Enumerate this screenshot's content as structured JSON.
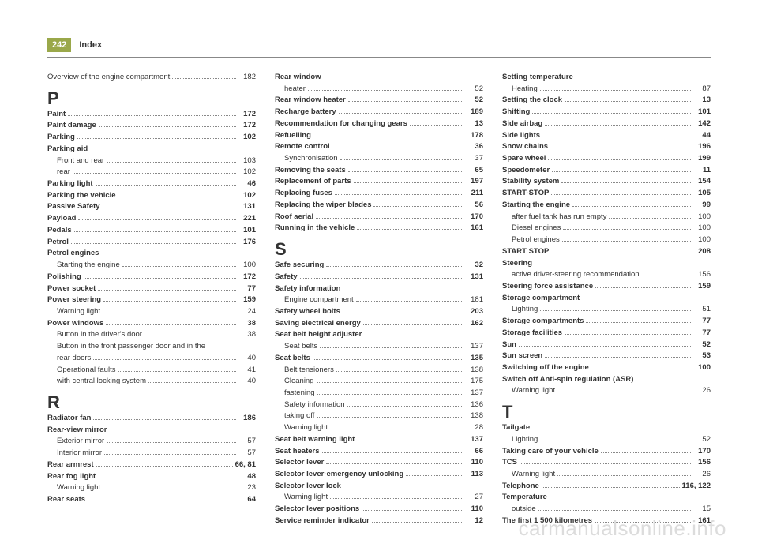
{
  "header": {
    "page_number": "242",
    "title": "Index"
  },
  "watermark": "carmanualsonline.info",
  "columns": [
    {
      "items": [
        {
          "type": "entry",
          "label": "Overview of the engine compartment",
          "page": "182",
          "bold": false,
          "sub": false
        },
        {
          "type": "letter",
          "text": "P"
        },
        {
          "type": "entry",
          "label": "Paint",
          "page": "172",
          "bold": true,
          "sub": false
        },
        {
          "type": "entry",
          "label": "Paint damage",
          "page": "172",
          "bold": true,
          "sub": false
        },
        {
          "type": "entry",
          "label": "Parking",
          "page": "102",
          "bold": true,
          "sub": false
        },
        {
          "type": "entry",
          "label": "Parking aid",
          "page": "",
          "bold": true,
          "sub": false,
          "nodots": true
        },
        {
          "type": "entry",
          "label": "Front and rear",
          "page": "103",
          "bold": false,
          "sub": true
        },
        {
          "type": "entry",
          "label": "rear",
          "page": "102",
          "bold": false,
          "sub": true
        },
        {
          "type": "entry",
          "label": "Parking light",
          "page": "46",
          "bold": true,
          "sub": false
        },
        {
          "type": "entry",
          "label": "Parking the vehicle",
          "page": "102",
          "bold": true,
          "sub": false
        },
        {
          "type": "entry",
          "label": "Passive Safety",
          "page": "131",
          "bold": true,
          "sub": false
        },
        {
          "type": "entry",
          "label": "Payload",
          "page": "221",
          "bold": true,
          "sub": false
        },
        {
          "type": "entry",
          "label": "Pedals",
          "page": "101",
          "bold": true,
          "sub": false
        },
        {
          "type": "entry",
          "label": "Petrol",
          "page": "176",
          "bold": true,
          "sub": false
        },
        {
          "type": "entry",
          "label": "Petrol engines",
          "page": "",
          "bold": true,
          "sub": false,
          "nodots": true
        },
        {
          "type": "entry",
          "label": "Starting the engine",
          "page": "100",
          "bold": false,
          "sub": true
        },
        {
          "type": "entry",
          "label": "Polishing",
          "page": "172",
          "bold": true,
          "sub": false
        },
        {
          "type": "entry",
          "label": "Power socket",
          "page": "77",
          "bold": true,
          "sub": false
        },
        {
          "type": "entry",
          "label": "Power steering",
          "page": "159",
          "bold": true,
          "sub": false
        },
        {
          "type": "entry",
          "label": "Warning light",
          "page": "24",
          "bold": false,
          "sub": true
        },
        {
          "type": "entry",
          "label": "Power windows",
          "page": "38",
          "bold": true,
          "sub": false
        },
        {
          "type": "entry",
          "label": "Button in the driver's door",
          "page": "38",
          "bold": false,
          "sub": true
        },
        {
          "type": "entry",
          "label": "Button in the front passenger door and in the",
          "page": "",
          "bold": false,
          "sub": true,
          "nodots": true
        },
        {
          "type": "entry",
          "label": "  rear doors",
          "page": "40",
          "bold": false,
          "sub": true
        },
        {
          "type": "entry",
          "label": "Operational faults",
          "page": "41",
          "bold": false,
          "sub": true
        },
        {
          "type": "entry",
          "label": "with central locking system",
          "page": "40",
          "bold": false,
          "sub": true
        },
        {
          "type": "letter",
          "text": "R"
        },
        {
          "type": "entry",
          "label": "Radiator fan",
          "page": "186",
          "bold": true,
          "sub": false
        },
        {
          "type": "entry",
          "label": "Rear-view mirror",
          "page": "",
          "bold": true,
          "sub": false,
          "nodots": true
        },
        {
          "type": "entry",
          "label": "Exterior mirror",
          "page": "57",
          "bold": false,
          "sub": true
        },
        {
          "type": "entry",
          "label": "Interior mirror",
          "page": "57",
          "bold": false,
          "sub": true
        },
        {
          "type": "entry",
          "label": "Rear armrest",
          "page": "66, 81",
          "bold": true,
          "sub": false
        },
        {
          "type": "entry",
          "label": "Rear fog light",
          "page": "48",
          "bold": true,
          "sub": false
        },
        {
          "type": "entry",
          "label": "Warning light",
          "page": "23",
          "bold": false,
          "sub": true
        },
        {
          "type": "entry",
          "label": "Rear seats",
          "page": "64",
          "bold": true,
          "sub": false
        }
      ]
    },
    {
      "items": [
        {
          "type": "entry",
          "label": "Rear window",
          "page": "",
          "bold": true,
          "sub": false,
          "nodots": true
        },
        {
          "type": "entry",
          "label": "heater",
          "page": "52",
          "bold": false,
          "sub": true
        },
        {
          "type": "entry",
          "label": "Rear window heater",
          "page": "52",
          "bold": true,
          "sub": false
        },
        {
          "type": "entry",
          "label": "Recharge battery",
          "page": "189",
          "bold": true,
          "sub": false
        },
        {
          "type": "entry",
          "label": "Recommendation for changing gears",
          "page": "13",
          "bold": true,
          "sub": false
        },
        {
          "type": "entry",
          "label": "Refuelling",
          "page": "178",
          "bold": true,
          "sub": false
        },
        {
          "type": "entry",
          "label": "Remote control",
          "page": "36",
          "bold": true,
          "sub": false
        },
        {
          "type": "entry",
          "label": "Synchronisation",
          "page": "37",
          "bold": false,
          "sub": true
        },
        {
          "type": "entry",
          "label": "Removing the seats",
          "page": "65",
          "bold": true,
          "sub": false
        },
        {
          "type": "entry",
          "label": "Replacement of parts",
          "page": "197",
          "bold": true,
          "sub": false
        },
        {
          "type": "entry",
          "label": "Replacing fuses",
          "page": "211",
          "bold": true,
          "sub": false
        },
        {
          "type": "entry",
          "label": "Replacing the wiper blades",
          "page": "56",
          "bold": true,
          "sub": false
        },
        {
          "type": "entry",
          "label": "Roof aerial",
          "page": "170",
          "bold": true,
          "sub": false
        },
        {
          "type": "entry",
          "label": "Running in the vehicle",
          "page": "161",
          "bold": true,
          "sub": false
        },
        {
          "type": "letter",
          "text": "S"
        },
        {
          "type": "entry",
          "label": "Safe securing",
          "page": "32",
          "bold": true,
          "sub": false
        },
        {
          "type": "entry",
          "label": "Safety",
          "page": "131",
          "bold": true,
          "sub": false
        },
        {
          "type": "entry",
          "label": "Safety information",
          "page": "",
          "bold": true,
          "sub": false,
          "nodots": true
        },
        {
          "type": "entry",
          "label": "Engine compartment",
          "page": "181",
          "bold": false,
          "sub": true
        },
        {
          "type": "entry",
          "label": "Safety wheel bolts",
          "page": "203",
          "bold": true,
          "sub": false
        },
        {
          "type": "entry",
          "label": "Saving electrical energy",
          "page": "162",
          "bold": true,
          "sub": false
        },
        {
          "type": "entry",
          "label": "Seat belt height adjuster",
          "page": "",
          "bold": true,
          "sub": false,
          "nodots": true
        },
        {
          "type": "entry",
          "label": "Seat belts",
          "page": "137",
          "bold": false,
          "sub": true
        },
        {
          "type": "entry",
          "label": "Seat belts",
          "page": "135",
          "bold": true,
          "sub": false
        },
        {
          "type": "entry",
          "label": "Belt tensioners",
          "page": "138",
          "bold": false,
          "sub": true
        },
        {
          "type": "entry",
          "label": "Cleaning",
          "page": "175",
          "bold": false,
          "sub": true
        },
        {
          "type": "entry",
          "label": "fastening",
          "page": "137",
          "bold": false,
          "sub": true
        },
        {
          "type": "entry",
          "label": "Safety information",
          "page": "136",
          "bold": false,
          "sub": true
        },
        {
          "type": "entry",
          "label": "taking off",
          "page": "138",
          "bold": false,
          "sub": true
        },
        {
          "type": "entry",
          "label": "Warning light",
          "page": "28",
          "bold": false,
          "sub": true
        },
        {
          "type": "entry",
          "label": "Seat belt warning light",
          "page": "137",
          "bold": true,
          "sub": false
        },
        {
          "type": "entry",
          "label": "Seat heaters",
          "page": "66",
          "bold": true,
          "sub": false
        },
        {
          "type": "entry",
          "label": "Selector lever",
          "page": "110",
          "bold": true,
          "sub": false
        },
        {
          "type": "entry",
          "label": "Selector lever-emergency unlocking",
          "page": "113",
          "bold": true,
          "sub": false
        },
        {
          "type": "entry",
          "label": "Selector lever lock",
          "page": "",
          "bold": true,
          "sub": false,
          "nodots": true
        },
        {
          "type": "entry",
          "label": "Warning light",
          "page": "27",
          "bold": false,
          "sub": true
        },
        {
          "type": "entry",
          "label": "Selector lever positions",
          "page": "110",
          "bold": true,
          "sub": false
        },
        {
          "type": "entry",
          "label": "Service reminder indicator",
          "page": "12",
          "bold": true,
          "sub": false
        }
      ]
    },
    {
      "items": [
        {
          "type": "entry",
          "label": "Setting temperature",
          "page": "",
          "bold": true,
          "sub": false,
          "nodots": true
        },
        {
          "type": "entry",
          "label": "Heating",
          "page": "87",
          "bold": false,
          "sub": true
        },
        {
          "type": "entry",
          "label": "Setting the clock",
          "page": "13",
          "bold": true,
          "sub": false
        },
        {
          "type": "entry",
          "label": "Shifting",
          "page": "101",
          "bold": true,
          "sub": false
        },
        {
          "type": "entry",
          "label": "Side airbag",
          "page": "142",
          "bold": true,
          "sub": false
        },
        {
          "type": "entry",
          "label": "Side lights",
          "page": "44",
          "bold": true,
          "sub": false
        },
        {
          "type": "entry",
          "label": "Snow chains",
          "page": "196",
          "bold": true,
          "sub": false
        },
        {
          "type": "entry",
          "label": "Spare wheel",
          "page": "199",
          "bold": true,
          "sub": false
        },
        {
          "type": "entry",
          "label": "Speedometer",
          "page": "11",
          "bold": true,
          "sub": false
        },
        {
          "type": "entry",
          "label": "Stability system",
          "page": "154",
          "bold": true,
          "sub": false
        },
        {
          "type": "entry",
          "label": "START-STOP",
          "page": "105",
          "bold": true,
          "sub": false
        },
        {
          "type": "entry",
          "label": "Starting the engine",
          "page": "99",
          "bold": true,
          "sub": false
        },
        {
          "type": "entry",
          "label": "after fuel tank has run empty",
          "page": "100",
          "bold": false,
          "sub": true
        },
        {
          "type": "entry",
          "label": "Diesel engines",
          "page": "100",
          "bold": false,
          "sub": true
        },
        {
          "type": "entry",
          "label": "Petrol engines",
          "page": "100",
          "bold": false,
          "sub": true
        },
        {
          "type": "entry",
          "label": "START STOP",
          "page": "208",
          "bold": true,
          "sub": false
        },
        {
          "type": "entry",
          "label": "Steering",
          "page": "",
          "bold": true,
          "sub": false,
          "nodots": true
        },
        {
          "type": "entry",
          "label": "active driver-steering recommendation",
          "page": "156",
          "bold": false,
          "sub": true
        },
        {
          "type": "entry",
          "label": "Steering force assistance",
          "page": "159",
          "bold": true,
          "sub": false
        },
        {
          "type": "entry",
          "label": "Storage compartment",
          "page": "",
          "bold": true,
          "sub": false,
          "nodots": true
        },
        {
          "type": "entry",
          "label": "Lighting",
          "page": "51",
          "bold": false,
          "sub": true
        },
        {
          "type": "entry",
          "label": "Storage compartments",
          "page": "77",
          "bold": true,
          "sub": false
        },
        {
          "type": "entry",
          "label": "Storage facilities",
          "page": "77",
          "bold": true,
          "sub": false
        },
        {
          "type": "entry",
          "label": "Sun",
          "page": "52",
          "bold": true,
          "sub": false
        },
        {
          "type": "entry",
          "label": "Sun screen",
          "page": "53",
          "bold": true,
          "sub": false
        },
        {
          "type": "entry",
          "label": "Switching off the engine",
          "page": "100",
          "bold": true,
          "sub": false
        },
        {
          "type": "entry",
          "label": "Switch off Anti-spin regulation (ASR)",
          "page": "",
          "bold": true,
          "sub": false,
          "nodots": true
        },
        {
          "type": "entry",
          "label": "Warning light",
          "page": "26",
          "bold": false,
          "sub": true
        },
        {
          "type": "letter",
          "text": "T"
        },
        {
          "type": "entry",
          "label": "Tailgate",
          "page": "",
          "bold": true,
          "sub": false,
          "nodots": true
        },
        {
          "type": "entry",
          "label": "Lighting",
          "page": "52",
          "bold": false,
          "sub": true
        },
        {
          "type": "entry",
          "label": "Taking care of your vehicle",
          "page": "170",
          "bold": true,
          "sub": false
        },
        {
          "type": "entry",
          "label": "TCS",
          "page": "156",
          "bold": true,
          "sub": false
        },
        {
          "type": "entry",
          "label": "Warning light",
          "page": "26",
          "bold": false,
          "sub": true
        },
        {
          "type": "entry",
          "label": "Telephone",
          "page": "116, 122",
          "bold": true,
          "sub": false
        },
        {
          "type": "entry",
          "label": "Temperature",
          "page": "",
          "bold": true,
          "sub": false,
          "nodots": true
        },
        {
          "type": "entry",
          "label": "outside",
          "page": "15",
          "bold": false,
          "sub": true
        },
        {
          "type": "entry",
          "label": "The first 1 500 kilometres",
          "page": "161",
          "bold": true,
          "sub": false
        }
      ]
    }
  ]
}
